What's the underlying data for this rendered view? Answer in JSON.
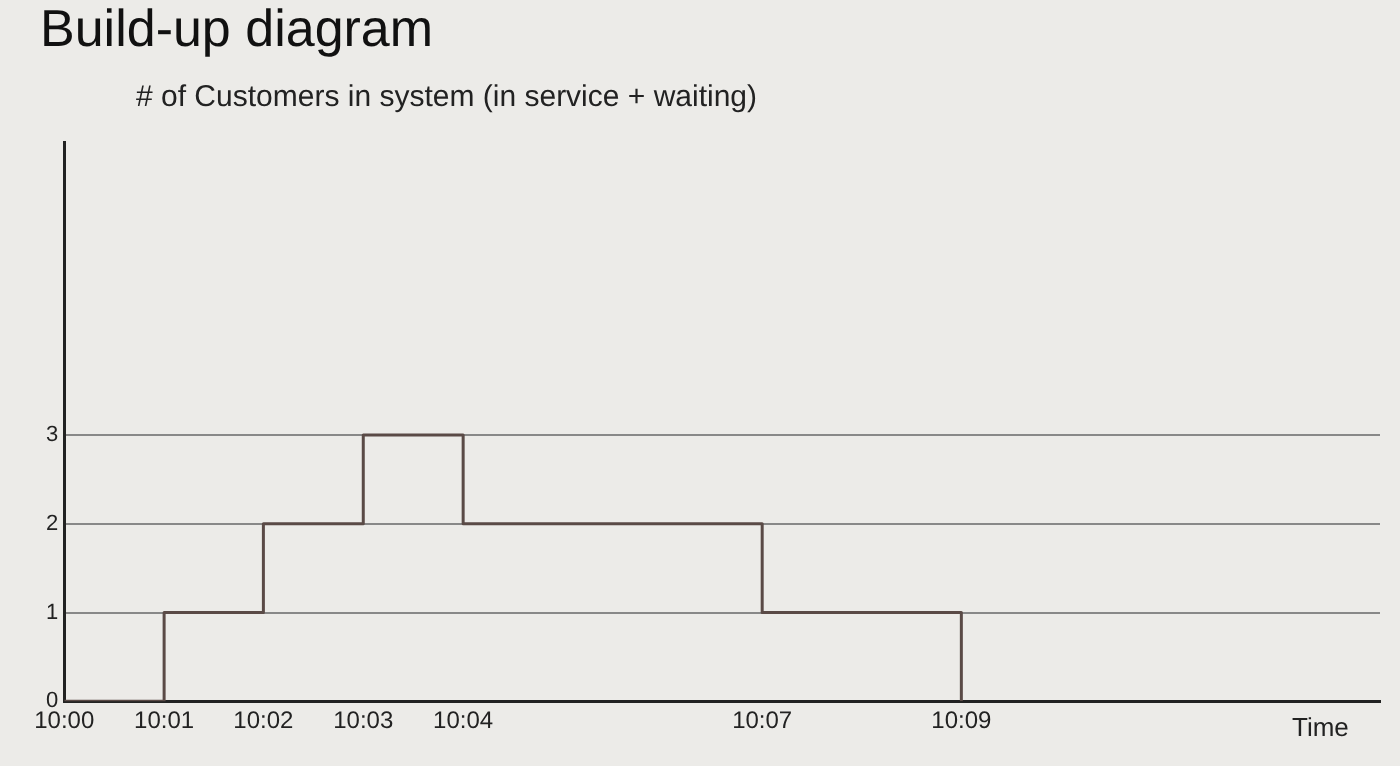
{
  "chart_data": {
    "type": "step",
    "title": "Build-up diagram",
    "ylabel": "# of Customers in system (in service + waiting)",
    "xlabel": "Time",
    "x": [
      10,
      10.0167,
      10.0333,
      10.05,
      10.0667,
      10.1167,
      10.15
    ],
    "series": [
      {
        "color": "#5a4a46",
        "values": [
          0,
          1,
          2,
          3,
          2,
          1,
          0
        ]
      }
    ],
    "xlim": [
      10,
      10.22
    ],
    "xticks": [
      {
        "value": 10,
        "label": "10:00"
      },
      {
        "value": 10.0167,
        "label": "10:01"
      },
      {
        "value": 10.0333,
        "label": "10:02"
      },
      {
        "value": 10.05,
        "label": "10:03"
      },
      {
        "value": 10.0667,
        "label": "10:04"
      },
      {
        "value": 10.1167,
        "label": "10:07"
      },
      {
        "value": 10.15,
        "label": "10:09"
      }
    ],
    "ylim": [
      0,
      6.3
    ],
    "yticks": [
      0,
      1,
      2,
      3
    ],
    "grid": "y",
    "legend": false,
    "marker": "none"
  }
}
